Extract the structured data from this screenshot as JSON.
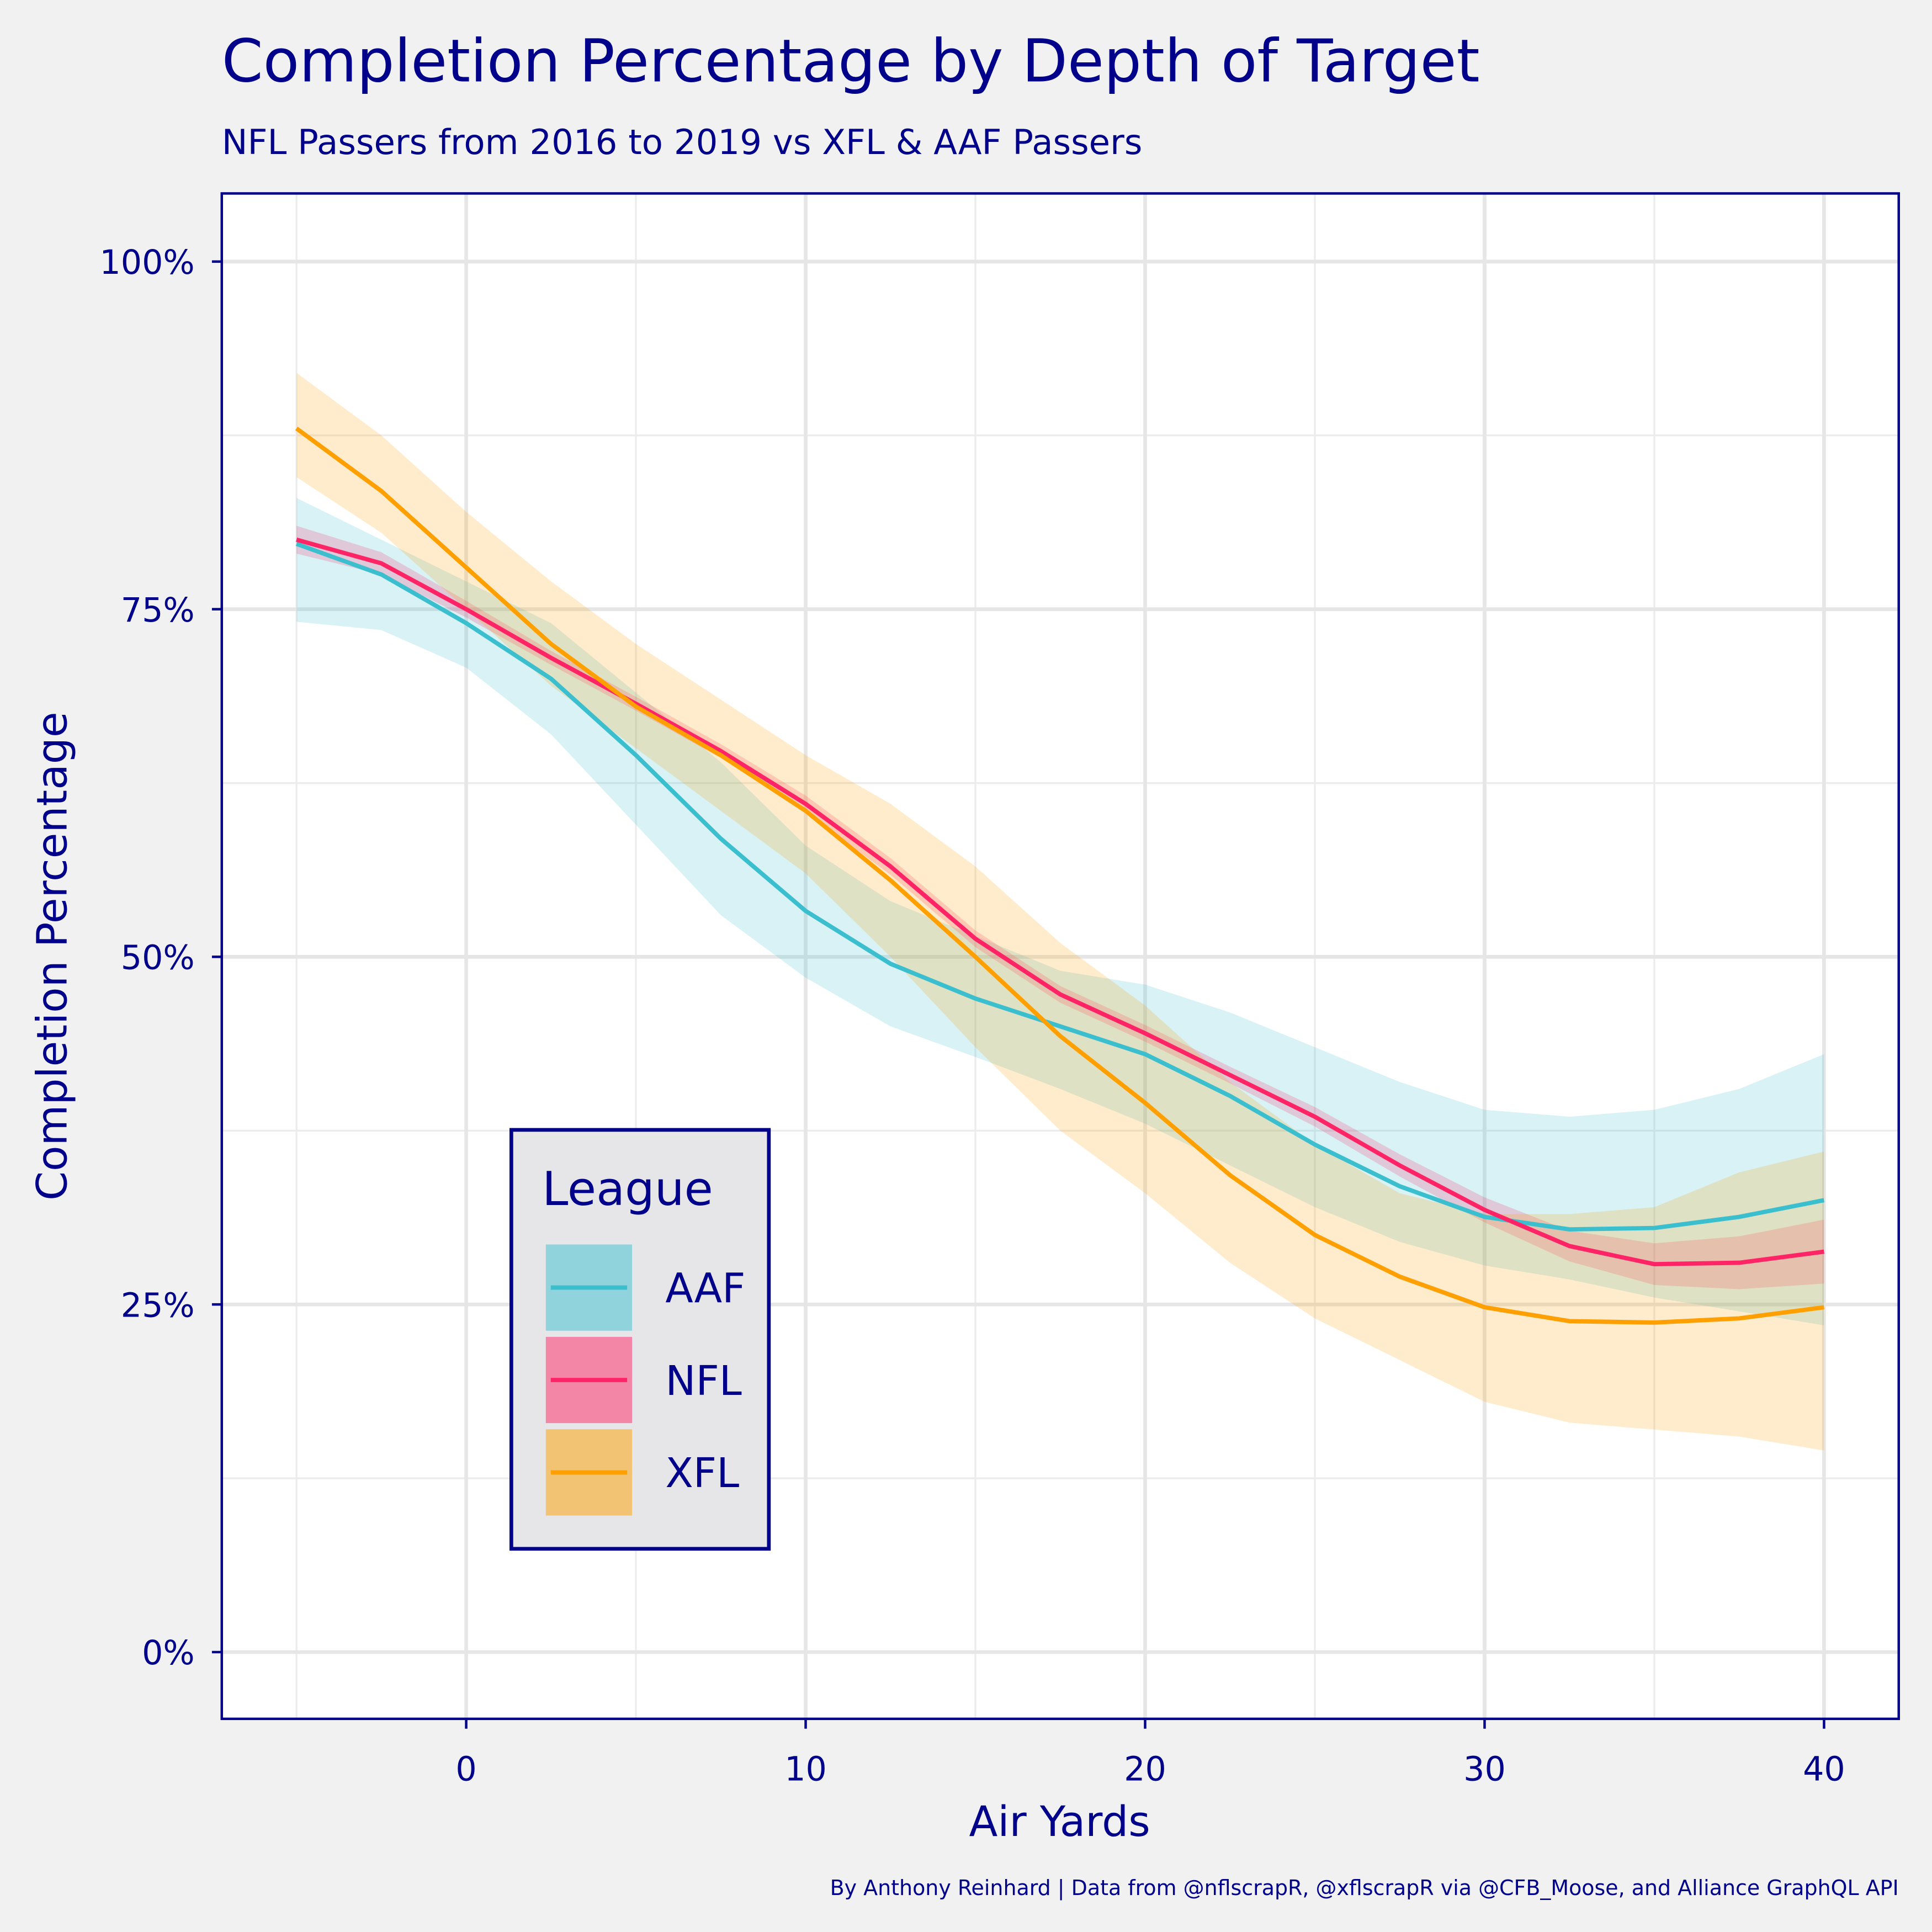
{
  "chart_data": {
    "type": "line",
    "title": "Completion Percentage by Depth of Target",
    "subtitle": "NFL Passers from 2016 to 2019 vs XFL & AAF Passers",
    "x_label": "Air Yards",
    "y_label": "Completion Percentage",
    "caption": "By Anthony Reinhard  |  Data from @nflscrapR, @xflscrapR via @CFB_Moose, and Alliance GraphQL API",
    "legend_title": "League",
    "legend_position": "bottom-left",
    "grid": true,
    "x": [
      -5,
      -2.5,
      0,
      2.5,
      5,
      7.5,
      10,
      12.5,
      15,
      17.5,
      20,
      22.5,
      25,
      27.5,
      30,
      32.5,
      35,
      37.5,
      40
    ],
    "xlim": [
      -7.2,
      42.2
    ],
    "xticks": [
      0,
      10,
      20,
      30,
      40
    ],
    "ylim": [
      -4.8,
      104.9
    ],
    "yticks": [
      {
        "value": 0,
        "label": "0%"
      },
      {
        "value": 25,
        "label": "25%"
      },
      {
        "value": 50,
        "label": "50%"
      },
      {
        "value": 75,
        "label": "75%"
      },
      {
        "value": 100,
        "label": "100%"
      }
    ],
    "series": [
      {
        "name": "AAF",
        "color": "#3bbfcf",
        "values": [
          79.7,
          77.5,
          74,
          70,
          64.5,
          58.5,
          53.3,
          49.5,
          47,
          45,
          43,
          40,
          36.5,
          33.5,
          31.3,
          30.4,
          30.5,
          31.3,
          32.5
        ],
        "lower": [
          74.1,
          73.5,
          70.8,
          66,
          59.5,
          53,
          48.5,
          45,
          42.8,
          40.5,
          38,
          35,
          32,
          29.5,
          27.8,
          26.8,
          25.5,
          24.5,
          23.5
        ],
        "upper": [
          83,
          80,
          77,
          74,
          69,
          64,
          58,
          54,
          51.5,
          49,
          48,
          46,
          43.5,
          41,
          39,
          38.5,
          39,
          40.5,
          43
        ]
      },
      {
        "name": "NFL",
        "color": "#ff2466",
        "values": [
          80,
          78.3,
          75,
          71.5,
          68.2,
          64.8,
          61,
          56.5,
          51.3,
          47.3,
          44.5,
          41.5,
          38.5,
          35,
          31.8,
          29.2,
          27.9,
          28,
          28.8
        ],
        "lower": [
          79,
          77.5,
          74.4,
          71,
          67.7,
          64.3,
          60.4,
          55.9,
          50.7,
          46.7,
          43.9,
          40.9,
          37.8,
          34.2,
          30.9,
          28.1,
          26.4,
          26.1,
          26.5
        ],
        "upper": [
          81,
          79.1,
          75.6,
          72,
          68.7,
          65.3,
          61.6,
          57.1,
          51.9,
          47.9,
          45.1,
          42.1,
          39.2,
          35.8,
          32.7,
          30.3,
          29.4,
          29.9,
          31.1
        ]
      },
      {
        "name": "XFL",
        "color": "#ff9f00",
        "values": [
          88,
          83.5,
          78,
          72.5,
          68,
          64.5,
          60.5,
          55.5,
          50,
          44.3,
          39.5,
          34.3,
          30,
          27,
          24.8,
          23.8,
          23.7,
          24,
          24.8
        ],
        "lower": [
          84.5,
          80.5,
          75,
          69.5,
          65,
          60.5,
          56,
          50,
          43.5,
          37.5,
          33,
          28,
          24,
          21,
          18,
          16.5,
          16,
          15.5,
          14.5
        ],
        "upper": [
          92,
          87.5,
          82,
          77,
          72.5,
          68.5,
          64.5,
          61,
          56.5,
          51,
          46.5,
          41,
          36.5,
          33,
          31.5,
          31.5,
          32,
          34.5,
          36
        ]
      }
    ]
  }
}
